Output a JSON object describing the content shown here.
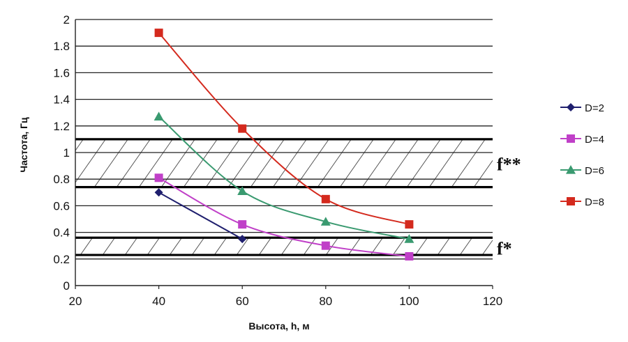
{
  "chart_data": {
    "type": "line",
    "xlabel": "Высота, h, м",
    "ylabel": "Частота, Гц",
    "xlim": [
      20,
      120
    ],
    "ylim": [
      0,
      2
    ],
    "xticks": [
      "20",
      "40",
      "60",
      "80",
      "100",
      "120"
    ],
    "yticks": [
      "0",
      "0.2",
      "0.4",
      "0.6",
      "0.8",
      "1",
      "1.2",
      "1.4",
      "1.6",
      "1.8",
      "2"
    ],
    "grid": "horizontal",
    "legend_position": "right",
    "series": [
      {
        "name": "D=2",
        "color": "#1f1f6e",
        "marker": "diamond",
        "x": [
          40,
          60
        ],
        "values": [
          0.7,
          0.35
        ]
      },
      {
        "name": "D=4",
        "color": "#c040c8",
        "marker": "square",
        "x": [
          40,
          60,
          80,
          100
        ],
        "values": [
          0.81,
          0.46,
          0.3,
          0.22
        ]
      },
      {
        "name": "D=6",
        "color": "#3a9a70",
        "marker": "triangle",
        "x": [
          40,
          60,
          80,
          100
        ],
        "values": [
          1.27,
          0.71,
          0.48,
          0.35
        ]
      },
      {
        "name": "D=8",
        "color": "#d42a1e",
        "marker": "square",
        "x": [
          40,
          60,
          80,
          100
        ],
        "values": [
          1.9,
          1.18,
          0.65,
          0.46
        ]
      }
    ],
    "bands": [
      {
        "label": "f**",
        "range": [
          0.74,
          1.1
        ]
      },
      {
        "label": "f*",
        "range": [
          0.23,
          0.36
        ]
      }
    ]
  }
}
